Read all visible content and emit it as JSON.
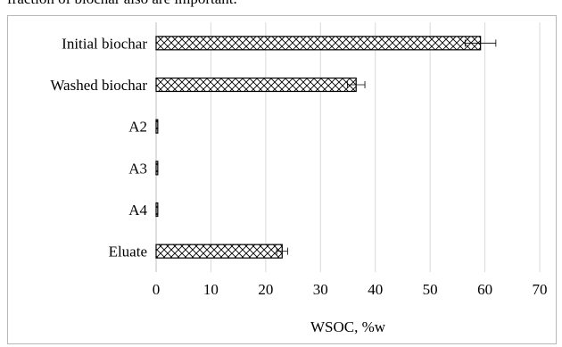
{
  "caption_fragment": "fraction of biochar also are important.",
  "chart_data": {
    "type": "bar",
    "orientation": "horizontal",
    "categories": [
      "Initial biochar",
      "Washed biochar",
      "A2",
      "A3",
      "A4",
      "Eluate"
    ],
    "values": [
      59.2,
      36.5,
      0.3,
      0.3,
      0.3,
      23.0
    ],
    "errors": [
      2.8,
      1.6,
      0,
      0,
      0,
      1.0
    ],
    "x_ticks": [
      0,
      10,
      20,
      30,
      40,
      50,
      60,
      70
    ],
    "xlim": [
      0,
      70
    ],
    "xlabel": "WSOC, %w",
    "ylabel": "",
    "title": "",
    "grid": "vertical",
    "legend": "none",
    "bar_pattern": "crosshatch",
    "colors": {
      "bar_fill": "#ffffff",
      "bar_outline": "#000000",
      "grid": "#d9d9d9",
      "frame": "#b7b7b7"
    }
  }
}
